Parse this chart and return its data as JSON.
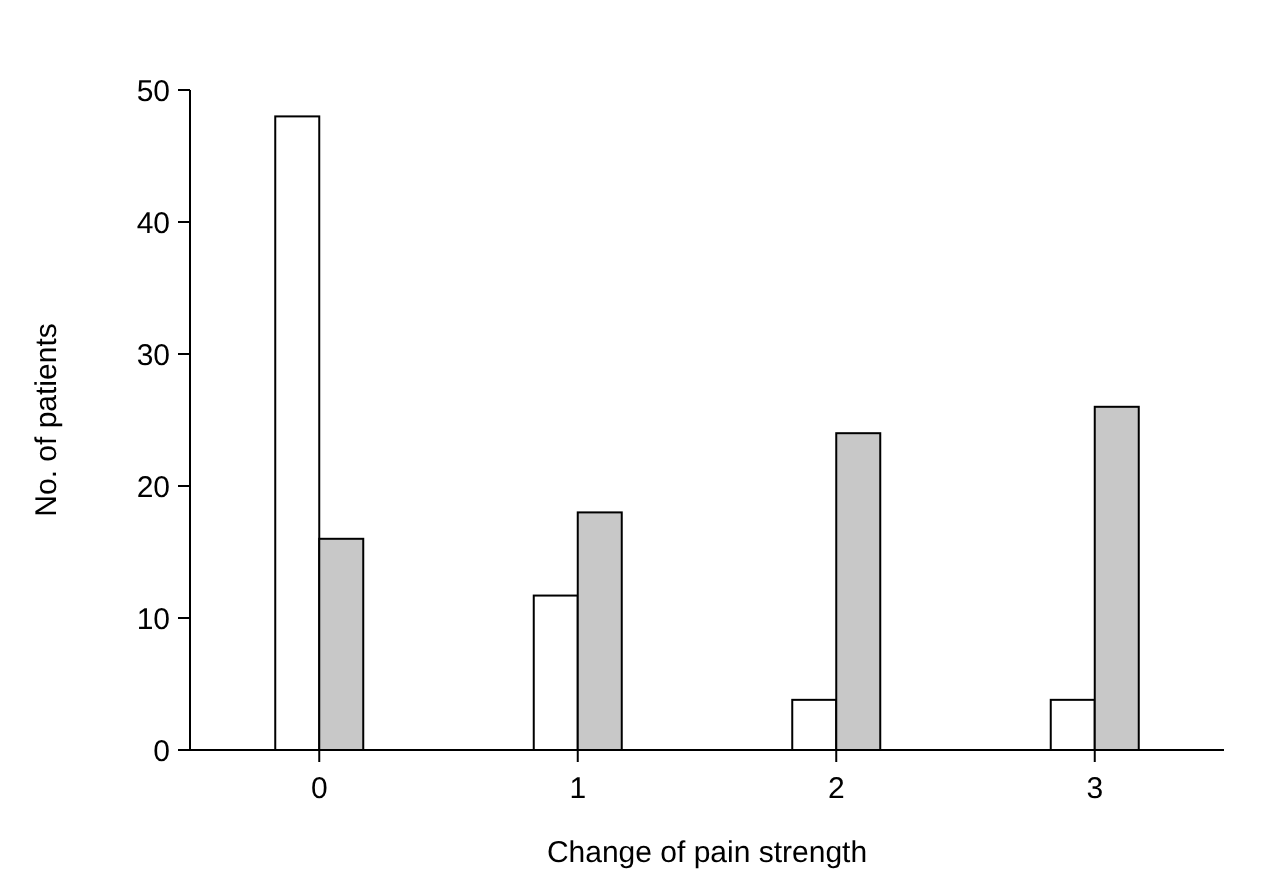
{
  "chart_data": {
    "type": "bar",
    "xlabel": "Change of pain strength",
    "ylabel": "No. of patients",
    "categories": [
      "0",
      "1",
      "2",
      "3"
    ],
    "series": [
      {
        "color": "#ffffff",
        "values": [
          48,
          11.7,
          3.8,
          3.8
        ]
      },
      {
        "color": "#c8c8c8",
        "values": [
          16,
          18,
          24,
          26
        ]
      }
    ],
    "ylim": [
      0,
      50
    ],
    "yticks": [
      0,
      10,
      20,
      30,
      40,
      50
    ],
    "grid": false
  }
}
